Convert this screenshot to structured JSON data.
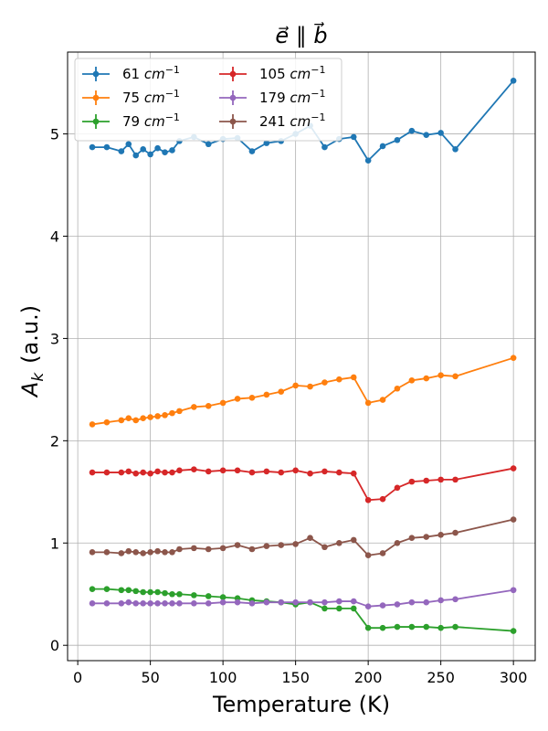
{
  "chart_data": {
    "type": "line",
    "title": "e⃗ ∥ b⃗",
    "xlabel": "Temperature (K)",
    "ylabel": "A",
    "ylabel_sub": "k",
    "ylabel_unit": "(a.u.)",
    "xlim": [
      -7,
      315
    ],
    "ylim": [
      -0.15,
      5.8
    ],
    "xticks": [
      0,
      50,
      100,
      150,
      200,
      250,
      300
    ],
    "yticks": [
      0,
      1,
      2,
      3,
      4,
      5
    ],
    "grid": true,
    "legend_position": "top-left",
    "legend_columns": 2,
    "x": [
      10,
      20,
      30,
      35,
      40,
      45,
      50,
      55,
      60,
      65,
      70,
      80,
      90,
      100,
      110,
      120,
      130,
      140,
      150,
      160,
      170,
      180,
      190,
      200,
      210,
      220,
      230,
      240,
      250,
      260,
      300
    ],
    "series": [
      {
        "name": "61",
        "unit": "cm",
        "unit_exp": "−1",
        "color": "#1f77b4",
        "x": [
          10,
          20,
          30,
          35,
          40,
          45,
          50,
          55,
          60,
          65,
          70,
          80,
          90,
          100,
          110,
          120,
          130,
          140,
          150,
          160,
          170,
          180,
          190,
          200,
          210,
          220,
          230,
          240,
          250,
          260,
          300
        ],
        "values": [
          4.87,
          4.87,
          4.83,
          4.9,
          4.79,
          4.85,
          4.8,
          4.86,
          4.82,
          4.84,
          4.93,
          4.97,
          4.9,
          4.95,
          4.96,
          4.83,
          4.91,
          4.93,
          5.0,
          5.08,
          4.87,
          4.95,
          4.97,
          4.74,
          4.88,
          4.94,
          5.03,
          4.99,
          5.01,
          4.85,
          5.52
        ]
      },
      {
        "name": "75",
        "unit": "cm",
        "unit_exp": "−1",
        "color": "#ff7f0e",
        "x": [
          10,
          20,
          30,
          35,
          40,
          45,
          50,
          55,
          60,
          65,
          70,
          80,
          90,
          100,
          110,
          120,
          130,
          140,
          150,
          160,
          170,
          180,
          190,
          200,
          210,
          220,
          230,
          240,
          250,
          260,
          300
        ],
        "values": [
          2.16,
          2.18,
          2.2,
          2.22,
          2.2,
          2.22,
          2.23,
          2.24,
          2.25,
          2.27,
          2.29,
          2.33,
          2.34,
          2.37,
          2.41,
          2.42,
          2.45,
          2.48,
          2.54,
          2.53,
          2.57,
          2.6,
          2.62,
          2.37,
          2.4,
          2.51,
          2.59,
          2.61,
          2.64,
          2.63,
          2.81
        ]
      },
      {
        "name": "79",
        "unit": "cm",
        "unit_exp": "−1",
        "color": "#2ca02c",
        "x": [
          10,
          20,
          30,
          35,
          40,
          45,
          50,
          55,
          60,
          65,
          70,
          80,
          90,
          100,
          110,
          120,
          130,
          140,
          150,
          160,
          170,
          180,
          190,
          200,
          210,
          220,
          230,
          240,
          250,
          260,
          300
        ],
        "values": [
          0.55,
          0.55,
          0.54,
          0.54,
          0.53,
          0.52,
          0.52,
          0.52,
          0.51,
          0.5,
          0.5,
          0.49,
          0.48,
          0.47,
          0.46,
          0.44,
          0.43,
          0.42,
          0.4,
          0.42,
          0.36,
          0.36,
          0.36,
          0.17,
          0.17,
          0.18,
          0.18,
          0.18,
          0.17,
          0.18,
          0.14
        ]
      },
      {
        "name": "105",
        "unit": "cm",
        "unit_exp": "−1",
        "color": "#d62728",
        "x": [
          10,
          20,
          30,
          35,
          40,
          45,
          50,
          55,
          60,
          65,
          70,
          80,
          90,
          100,
          110,
          120,
          130,
          140,
          150,
          160,
          170,
          180,
          190,
          200,
          210,
          220,
          230,
          240,
          250,
          260,
          300
        ],
        "values": [
          1.69,
          1.69,
          1.69,
          1.7,
          1.68,
          1.69,
          1.68,
          1.7,
          1.69,
          1.69,
          1.71,
          1.72,
          1.7,
          1.71,
          1.71,
          1.69,
          1.7,
          1.69,
          1.71,
          1.68,
          1.7,
          1.69,
          1.68,
          1.42,
          1.43,
          1.54,
          1.6,
          1.61,
          1.62,
          1.62,
          1.73
        ]
      },
      {
        "name": "179",
        "unit": "cm",
        "unit_exp": "−1",
        "color": "#9467bd",
        "x": [
          10,
          20,
          30,
          35,
          40,
          45,
          50,
          55,
          60,
          65,
          70,
          80,
          90,
          100,
          110,
          120,
          130,
          140,
          150,
          160,
          170,
          180,
          190,
          200,
          210,
          220,
          230,
          240,
          250,
          260,
          300
        ],
        "values": [
          0.41,
          0.41,
          0.41,
          0.42,
          0.41,
          0.41,
          0.41,
          0.41,
          0.41,
          0.41,
          0.41,
          0.41,
          0.41,
          0.42,
          0.42,
          0.41,
          0.42,
          0.42,
          0.42,
          0.42,
          0.42,
          0.43,
          0.43,
          0.38,
          0.39,
          0.4,
          0.42,
          0.42,
          0.44,
          0.45,
          0.54
        ]
      },
      {
        "name": "241",
        "unit": "cm",
        "unit_exp": "−1",
        "color": "#8c564b",
        "x": [
          10,
          20,
          30,
          35,
          40,
          45,
          50,
          55,
          60,
          65,
          70,
          80,
          90,
          100,
          110,
          120,
          130,
          140,
          150,
          160,
          170,
          180,
          190,
          200,
          210,
          220,
          230,
          240,
          250,
          260,
          300
        ],
        "values": [
          0.91,
          0.91,
          0.9,
          0.92,
          0.91,
          0.9,
          0.91,
          0.92,
          0.91,
          0.91,
          0.94,
          0.95,
          0.94,
          0.95,
          0.98,
          0.94,
          0.97,
          0.98,
          0.99,
          1.05,
          0.96,
          1.0,
          1.03,
          0.88,
          0.9,
          1.0,
          1.05,
          1.06,
          1.08,
          1.1,
          1.23
        ]
      }
    ]
  }
}
